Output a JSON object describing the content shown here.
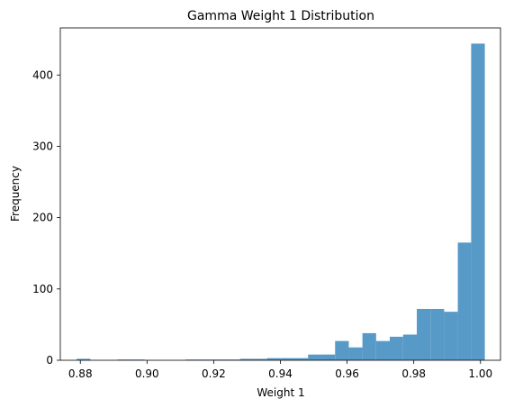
{
  "chart_data": {
    "type": "bar",
    "title": "Gamma Weight 1 Distribution",
    "xlabel": "Weight 1",
    "ylabel": "Frequency",
    "xlim": [
      0.874,
      1.006
    ],
    "ylim": [
      0,
      466
    ],
    "xticks": [
      0.88,
      0.9,
      0.92,
      0.94,
      0.96,
      0.98,
      1.0
    ],
    "xtick_labels": [
      "0.88",
      "0.90",
      "0.92",
      "0.94",
      "0.96",
      "0.98",
      "1.00"
    ],
    "yticks": [
      0,
      100,
      200,
      300,
      400
    ],
    "ytick_labels": [
      "0",
      "100",
      "200",
      "300",
      "400"
    ],
    "bar_color": "#5799c7",
    "bins": [
      {
        "x0": 0.8789,
        "x1": 0.883,
        "value": 2
      },
      {
        "x0": 0.883,
        "x1": 0.8871,
        "value": 0
      },
      {
        "x0": 0.8871,
        "x1": 0.8912,
        "value": 0
      },
      {
        "x0": 0.8912,
        "x1": 0.8952,
        "value": 1
      },
      {
        "x0": 0.8952,
        "x1": 0.8993,
        "value": 1
      },
      {
        "x0": 0.8993,
        "x1": 0.9034,
        "value": 0
      },
      {
        "x0": 0.9034,
        "x1": 0.9075,
        "value": 0
      },
      {
        "x0": 0.9075,
        "x1": 0.9116,
        "value": 0
      },
      {
        "x0": 0.9116,
        "x1": 0.9156,
        "value": 1
      },
      {
        "x0": 0.9156,
        "x1": 0.9197,
        "value": 1
      },
      {
        "x0": 0.9197,
        "x1": 0.9238,
        "value": 1
      },
      {
        "x0": 0.9238,
        "x1": 0.9279,
        "value": 1
      },
      {
        "x0": 0.9279,
        "x1": 0.932,
        "value": 2
      },
      {
        "x0": 0.932,
        "x1": 0.936,
        "value": 2
      },
      {
        "x0": 0.936,
        "x1": 0.9401,
        "value": 3
      },
      {
        "x0": 0.9401,
        "x1": 0.9442,
        "value": 3
      },
      {
        "x0": 0.9442,
        "x1": 0.9483,
        "value": 3
      },
      {
        "x0": 0.9483,
        "x1": 0.9524,
        "value": 8
      },
      {
        "x0": 0.9524,
        "x1": 0.9564,
        "value": 8
      },
      {
        "x0": 0.9564,
        "x1": 0.9605,
        "value": 27
      },
      {
        "x0": 0.9605,
        "x1": 0.9646,
        "value": 18
      },
      {
        "x0": 0.9646,
        "x1": 0.9687,
        "value": 38
      },
      {
        "x0": 0.9687,
        "x1": 0.9728,
        "value": 27
      },
      {
        "x0": 0.9728,
        "x1": 0.9768,
        "value": 33
      },
      {
        "x0": 0.9768,
        "x1": 0.9809,
        "value": 36
      },
      {
        "x0": 0.9809,
        "x1": 0.985,
        "value": 72
      },
      {
        "x0": 0.985,
        "x1": 0.9891,
        "value": 72
      },
      {
        "x0": 0.9891,
        "x1": 0.9932,
        "value": 68
      },
      {
        "x0": 0.9932,
        "x1": 0.9972,
        "value": 165
      },
      {
        "x0": 0.9972,
        "x1": 1.0013,
        "value": 444
      }
    ]
  }
}
